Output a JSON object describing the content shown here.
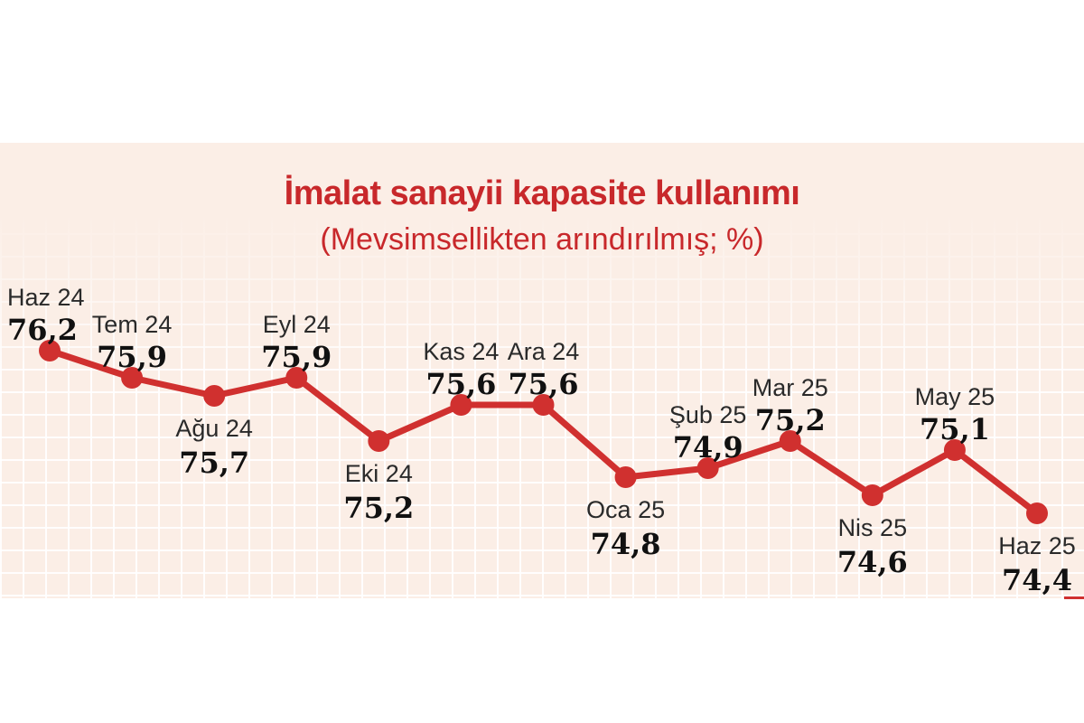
{
  "chart_data": {
    "type": "line",
    "title": "İmalat sanayii kapasite kullanımı",
    "subtitle": "(Mevsimsellikten arındırılmış; %)",
    "xlabel": "",
    "ylabel": "",
    "categories": [
      "Haz 24",
      "Tem 24",
      "Ağu 24",
      "Eyl 24",
      "Eki 24",
      "Kas 24",
      "Ara 24",
      "Oca 25",
      "Şub 25",
      "Mar 25",
      "Nis 25",
      "May 25",
      "Haz 25"
    ],
    "values": [
      76.2,
      75.9,
      75.7,
      75.9,
      75.2,
      75.6,
      75.6,
      74.8,
      74.9,
      75.2,
      74.6,
      75.1,
      74.4
    ],
    "value_labels": [
      "76,2",
      "75,9",
      "75,7",
      "75,9",
      "75,2",
      "75,6",
      "75,6",
      "74,8",
      "74,9",
      "75,2",
      "74,6",
      "75,1",
      "74,4"
    ],
    "label_position": [
      "above",
      "above",
      "below",
      "above",
      "below",
      "above",
      "above",
      "below",
      "above",
      "above",
      "below",
      "above",
      "below"
    ],
    "grid": true,
    "line_color": "#d0302f",
    "title_color": "#c8282b"
  }
}
